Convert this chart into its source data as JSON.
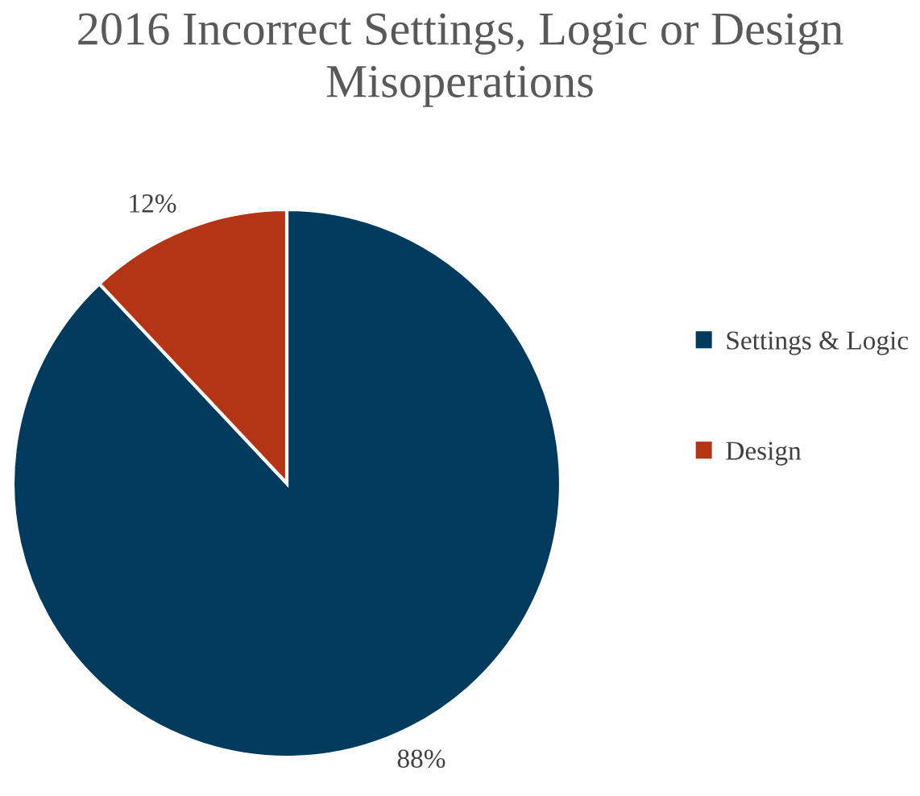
{
  "chart_data": {
    "type": "pie",
    "title": "2016 Incorrect Settings, Logic or Design\nMisoperations",
    "categories": [
      "Settings & Logic",
      "Design"
    ],
    "values": [
      88,
      12
    ],
    "colors": [
      "#003a5c",
      "#b33516"
    ],
    "value_labels": [
      "88%",
      "12%"
    ],
    "legend": "right"
  }
}
